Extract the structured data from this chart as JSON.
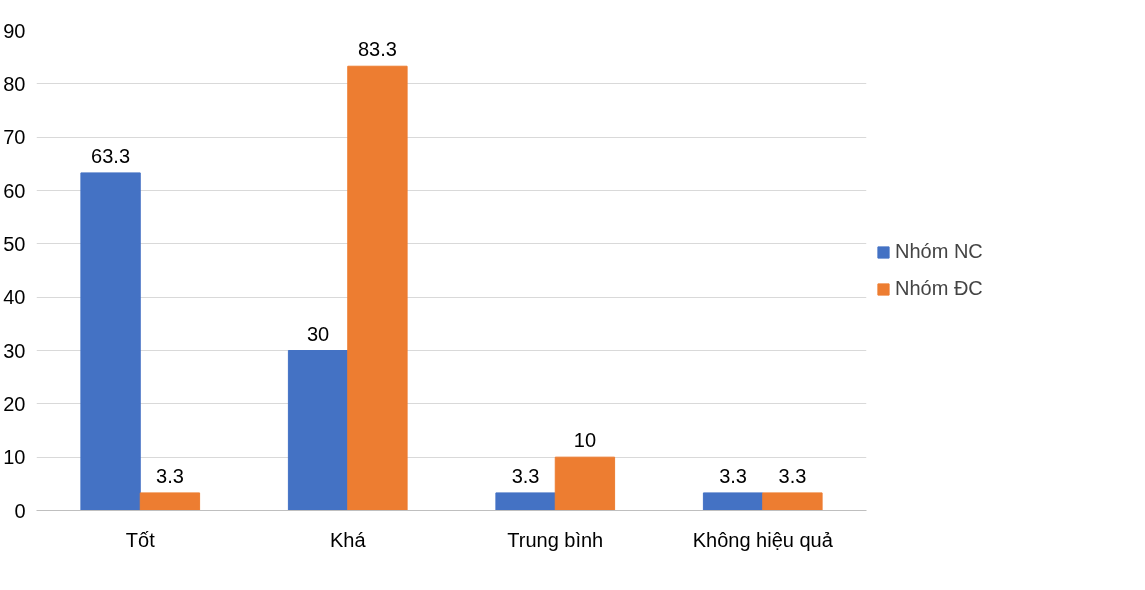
{
  "chart_data": {
    "type": "bar",
    "categories": [
      "Tốt",
      "Khá",
      "Trung bình",
      "Không hiệu quả"
    ],
    "series": [
      {
        "name": "Nhóm NC",
        "color": "#4472c4",
        "values": [
          63.3,
          30,
          3.3,
          3.3
        ]
      },
      {
        "name": "Nhóm ĐC",
        "color": "#ed7d31",
        "values": [
          3.3,
          83.3,
          10,
          3.3
        ]
      }
    ],
    "ylim": [
      0,
      90
    ],
    "yticks": [
      0,
      10,
      20,
      30,
      40,
      50,
      60,
      70,
      80,
      90
    ],
    "grid": "y",
    "legend": "right",
    "data_labels": true
  }
}
